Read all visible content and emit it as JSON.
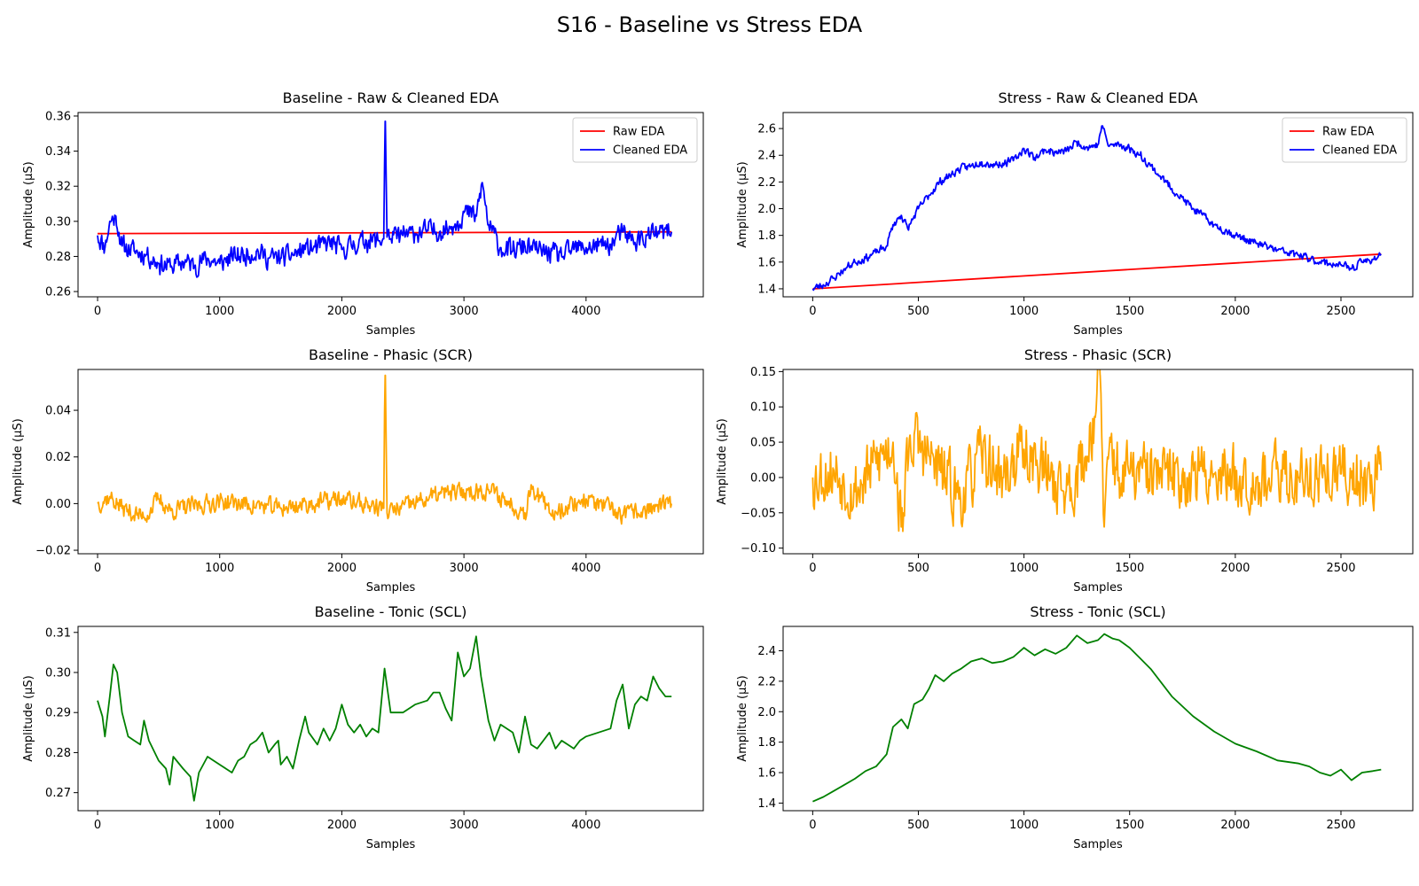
{
  "figure": {
    "title": "S16 - Baseline vs Stress EDA"
  },
  "chart_data": [
    {
      "type": "line",
      "title": "Baseline - Raw & Cleaned EDA",
      "xlabel": "Samples",
      "ylabel": "Amplitude (µS)",
      "xlim": [
        -160,
        4960
      ],
      "ylim": [
        0.257,
        0.362
      ],
      "xticks": [
        0,
        1000,
        2000,
        3000,
        4000
      ],
      "yticks": [
        0.26,
        0.28,
        0.3,
        0.32,
        0.34,
        0.36
      ],
      "tick_decimals": 2,
      "legend": "top-right",
      "series": [
        {
          "name": "Raw EDA",
          "color": "#ff0000",
          "x": [
            0,
            4700
          ],
          "y": [
            0.293,
            0.294
          ]
        },
        {
          "name": "Cleaned EDA",
          "color": "#0000ff",
          "noise": 0.006,
          "seed": 11,
          "x": [
            0,
            60,
            100,
            150,
            200,
            300,
            400,
            500,
            600,
            700,
            800,
            900,
            1000,
            1100,
            1200,
            1300,
            1400,
            1500,
            1600,
            1700,
            1800,
            1900,
            2000,
            2100,
            2200,
            2300,
            2340,
            2355,
            2370,
            2400,
            2500,
            2600,
            2700,
            2800,
            2900,
            2950,
            3000,
            3100,
            3150,
            3200,
            3300,
            3400,
            3500,
            3600,
            3700,
            3800,
            3900,
            4000,
            4100,
            4200,
            4300,
            4400,
            4500,
            4600,
            4700
          ],
          "y": [
            0.292,
            0.285,
            0.3,
            0.303,
            0.286,
            0.283,
            0.281,
            0.276,
            0.274,
            0.277,
            0.275,
            0.279,
            0.276,
            0.28,
            0.281,
            0.283,
            0.279,
            0.279,
            0.281,
            0.284,
            0.285,
            0.288,
            0.284,
            0.287,
            0.289,
            0.289,
            0.29,
            0.357,
            0.291,
            0.29,
            0.292,
            0.293,
            0.295,
            0.294,
            0.297,
            0.3,
            0.305,
            0.303,
            0.322,
            0.298,
            0.285,
            0.283,
            0.286,
            0.283,
            0.282,
            0.28,
            0.284,
            0.285,
            0.286,
            0.287,
            0.294,
            0.288,
            0.292,
            0.293,
            0.294
          ]
        }
      ]
    },
    {
      "type": "line",
      "title": "Stress - Raw & Cleaned EDA",
      "xlabel": "Samples",
      "ylabel": "Amplitude (µS)",
      "xlim": [
        -140,
        2840
      ],
      "ylim": [
        1.34,
        2.72
      ],
      "xticks": [
        0,
        500,
        1000,
        1500,
        2000,
        2500
      ],
      "yticks": [
        1.4,
        1.6,
        1.8,
        2.0,
        2.2,
        2.4,
        2.6
      ],
      "tick_decimals": 1,
      "legend": "top-right",
      "series": [
        {
          "name": "Raw EDA",
          "color": "#ff0000",
          "x": [
            0,
            2690
          ],
          "y": [
            1.4,
            1.66
          ]
        },
        {
          "name": "Cleaned EDA",
          "color": "#0000ff",
          "noise": 0.03,
          "seed": 23,
          "x": [
            0,
            50,
            100,
            150,
            200,
            250,
            300,
            350,
            380,
            420,
            450,
            500,
            550,
            600,
            650,
            700,
            750,
            800,
            850,
            900,
            950,
            1000,
            1050,
            1100,
            1150,
            1200,
            1250,
            1300,
            1350,
            1370,
            1400,
            1450,
            1500,
            1550,
            1600,
            1700,
            1800,
            1900,
            2000,
            2100,
            2200,
            2300,
            2400,
            2500,
            2550,
            2600,
            2650,
            2690
          ],
          "y": [
            1.4,
            1.43,
            1.48,
            1.55,
            1.6,
            1.63,
            1.67,
            1.72,
            1.88,
            1.95,
            1.85,
            2.0,
            2.1,
            2.2,
            2.25,
            2.3,
            2.32,
            2.35,
            2.33,
            2.34,
            2.36,
            2.45,
            2.38,
            2.44,
            2.42,
            2.43,
            2.5,
            2.46,
            2.48,
            2.62,
            2.47,
            2.48,
            2.45,
            2.4,
            2.32,
            2.15,
            2.0,
            1.88,
            1.8,
            1.74,
            1.69,
            1.65,
            1.6,
            1.58,
            1.55,
            1.6,
            1.62,
            1.66
          ]
        }
      ]
    },
    {
      "type": "line",
      "title": "Baseline - Phasic (SCR)",
      "xlabel": "Samples",
      "ylabel": "Amplitude (µS)",
      "xlim": [
        -160,
        4960
      ],
      "ylim": [
        -0.0215,
        0.0575
      ],
      "xticks": [
        0,
        1000,
        2000,
        3000,
        4000
      ],
      "yticks": [
        -0.02,
        0.0,
        0.02,
        0.04
      ],
      "tick_decimals": 2,
      "legend": "none",
      "series": [
        {
          "name": "",
          "color": "#ffa500",
          "noise": 0.004,
          "seed": 37,
          "x": [
            0,
            100,
            200,
            380,
            500,
            600,
            1000,
            1500,
            2000,
            2340,
            2355,
            2370,
            2800,
            3200,
            3500,
            3550,
            3700,
            4000,
            4300,
            4700
          ],
          "y": [
            0.0,
            0.003,
            -0.002,
            -0.006,
            0.002,
            -0.003,
            0.001,
            -0.002,
            0.002,
            -0.002,
            0.055,
            -0.004,
            0.004,
            0.006,
            -0.004,
            0.008,
            -0.004,
            0.002,
            -0.005,
            0.0
          ]
        }
      ]
    },
    {
      "type": "line",
      "title": "Stress - Phasic (SCR)",
      "xlabel": "Samples",
      "ylabel": "Amplitude (µS)",
      "xlim": [
        -140,
        2840
      ],
      "ylim": [
        -0.108,
        0.153
      ],
      "xticks": [
        0,
        500,
        1000,
        1500,
        2000,
        2500
      ],
      "yticks": [
        -0.1,
        -0.05,
        0.0,
        0.05,
        0.1,
        0.15
      ],
      "tick_decimals": 2,
      "legend": "none",
      "series": [
        {
          "name": "",
          "color": "#ffa500",
          "noise": 0.045,
          "seed": 53,
          "x": [
            0,
            100,
            200,
            300,
            380,
            420,
            460,
            600,
            700,
            800,
            900,
            1000,
            1100,
            1200,
            1300,
            1360,
            1380,
            1410,
            1450,
            1500,
            1700,
            1900,
            2100,
            2300,
            2500,
            2600,
            2690
          ],
          "y": [
            0.0,
            0.01,
            -0.02,
            0.02,
            0.05,
            -0.07,
            0.06,
            0.01,
            -0.03,
            0.03,
            0.0,
            0.04,
            0.01,
            -0.02,
            0.03,
            0.145,
            -0.07,
            0.05,
            0.0,
            0.005,
            0.0,
            0.005,
            0.0,
            0.0,
            0.005,
            0.0,
            0.01
          ]
        }
      ]
    },
    {
      "type": "line",
      "title": "Baseline - Tonic (SCL)",
      "xlabel": "Samples",
      "ylabel": "Amplitude (µS)",
      "xlim": [
        -160,
        4960
      ],
      "ylim": [
        0.2655,
        0.3115
      ],
      "xticks": [
        0,
        1000,
        2000,
        3000,
        4000
      ],
      "yticks": [
        0.27,
        0.28,
        0.29,
        0.3,
        0.31
      ],
      "tick_decimals": 2,
      "legend": "none",
      "series": [
        {
          "name": "",
          "color": "#008000",
          "x": [
            0,
            40,
            60,
            100,
            130,
            160,
            200,
            250,
            300,
            350,
            380,
            420,
            500,
            560,
            590,
            620,
            700,
            760,
            790,
            830,
            900,
            1000,
            1050,
            1100,
            1150,
            1200,
            1250,
            1300,
            1350,
            1400,
            1450,
            1480,
            1500,
            1550,
            1600,
            1650,
            1700,
            1730,
            1800,
            1850,
            1900,
            1950,
            2000,
            2050,
            2100,
            2150,
            2200,
            2250,
            2300,
            2350,
            2400,
            2500,
            2600,
            2700,
            2750,
            2800,
            2850,
            2900,
            2950,
            3000,
            3050,
            3100,
            3140,
            3200,
            3250,
            3300,
            3350,
            3400,
            3450,
            3500,
            3550,
            3600,
            3650,
            3700,
            3750,
            3800,
            3850,
            3900,
            3950,
            4000,
            4100,
            4200,
            4250,
            4300,
            4350,
            4400,
            4450,
            4500,
            4550,
            4600,
            4650,
            4700
          ],
          "y": [
            0.293,
            0.289,
            0.284,
            0.294,
            0.302,
            0.3,
            0.29,
            0.284,
            0.283,
            0.282,
            0.288,
            0.283,
            0.278,
            0.276,
            0.272,
            0.279,
            0.276,
            0.274,
            0.268,
            0.275,
            0.279,
            0.277,
            0.276,
            0.275,
            0.278,
            0.279,
            0.282,
            0.283,
            0.285,
            0.28,
            0.282,
            0.283,
            0.277,
            0.279,
            0.276,
            0.283,
            0.289,
            0.285,
            0.282,
            0.286,
            0.283,
            0.286,
            0.292,
            0.287,
            0.285,
            0.287,
            0.284,
            0.286,
            0.285,
            0.301,
            0.29,
            0.29,
            0.292,
            0.293,
            0.295,
            0.295,
            0.291,
            0.288,
            0.305,
            0.299,
            0.301,
            0.309,
            0.299,
            0.288,
            0.283,
            0.287,
            0.286,
            0.285,
            0.28,
            0.289,
            0.282,
            0.281,
            0.283,
            0.285,
            0.281,
            0.283,
            0.282,
            0.281,
            0.283,
            0.284,
            0.285,
            0.286,
            0.293,
            0.297,
            0.286,
            0.292,
            0.294,
            0.293,
            0.299,
            0.296,
            0.294,
            0.294
          ]
        }
      ]
    },
    {
      "type": "line",
      "title": "Stress - Tonic (SCL)",
      "xlabel": "Samples",
      "ylabel": "Amplitude (µS)",
      "xlim": [
        -140,
        2840
      ],
      "ylim": [
        1.35,
        2.56
      ],
      "xticks": [
        0,
        500,
        1000,
        1500,
        2000,
        2500
      ],
      "yticks": [
        1.4,
        1.6,
        1.8,
        2.0,
        2.2,
        2.4
      ],
      "tick_decimals": 1,
      "legend": "none",
      "series": [
        {
          "name": "",
          "color": "#008000",
          "x": [
            0,
            50,
            100,
            150,
            200,
            250,
            300,
            350,
            380,
            420,
            450,
            480,
            520,
            550,
            580,
            620,
            660,
            700,
            750,
            800,
            850,
            900,
            950,
            1000,
            1050,
            1100,
            1150,
            1200,
            1250,
            1300,
            1350,
            1380,
            1420,
            1450,
            1500,
            1550,
            1600,
            1700,
            1800,
            1900,
            2000,
            2100,
            2200,
            2300,
            2350,
            2400,
            2450,
            2500,
            2550,
            2600,
            2650,
            2690
          ],
          "y": [
            1.41,
            1.44,
            1.48,
            1.52,
            1.56,
            1.61,
            1.64,
            1.72,
            1.9,
            1.95,
            1.89,
            2.05,
            2.08,
            2.15,
            2.24,
            2.2,
            2.25,
            2.28,
            2.33,
            2.35,
            2.32,
            2.33,
            2.36,
            2.42,
            2.37,
            2.41,
            2.38,
            2.42,
            2.5,
            2.45,
            2.47,
            2.51,
            2.48,
            2.47,
            2.42,
            2.35,
            2.28,
            2.1,
            1.97,
            1.87,
            1.79,
            1.74,
            1.68,
            1.66,
            1.64,
            1.6,
            1.58,
            1.62,
            1.55,
            1.6,
            1.61,
            1.62
          ]
        }
      ]
    }
  ]
}
